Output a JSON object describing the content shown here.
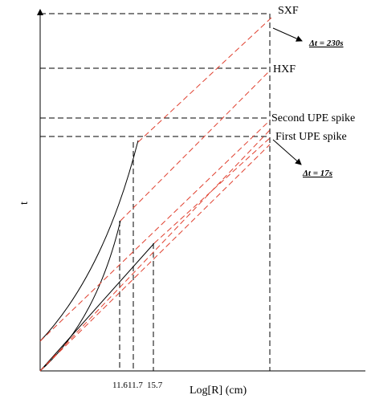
{
  "diagram": {
    "y_axis_label": "t",
    "x_axis_label": "Log[R] (cm)",
    "x_tick_labels": [
      "11.6",
      "11.7",
      "15.7"
    ],
    "levels": [
      "SXF",
      "HXF",
      "Second UPE spike",
      "First UPE spike"
    ],
    "annotations": [
      "Δt = 230s",
      "Δt = 17s"
    ]
  }
}
